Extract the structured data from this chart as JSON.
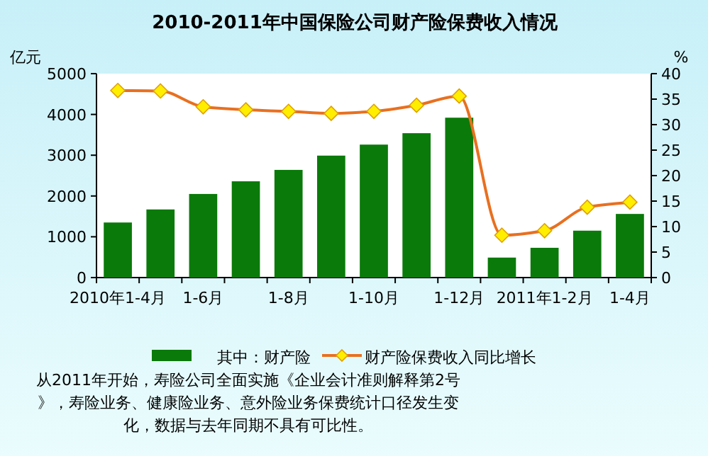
{
  "chart_data": {
    "type": "bar",
    "title": "2010-2011年中国保险公司财产险保费收入情况",
    "ylabel": "亿元",
    "y2label": "%",
    "categories": [
      "2010年1-4月",
      null,
      "1-6月",
      null,
      "1-8月",
      null,
      "1-10月",
      null,
      "1-12月",
      null,
      "2011年1-2月",
      null,
      "1-4月"
    ],
    "series": [
      {
        "name": "其中：财产险",
        "color": "#0a7a0a",
        "values": [
          1350,
          1670,
          2050,
          2360,
          2640,
          2990,
          3260,
          3540,
          3920,
          490,
          730,
          1150,
          1560
        ]
      },
      {
        "name": "财产险保费收入同比增长",
        "type": "line",
        "axis": "y2",
        "color": "#e87020",
        "marker": "diamond",
        "values": [
          36.7,
          36.6,
          33.5,
          32.9,
          32.6,
          32.2,
          32.6,
          33.8,
          35.6,
          8.3,
          9.2,
          13.8,
          14.8
        ]
      }
    ],
    "ylim": [
      0,
      5000
    ],
    "yticks": [
      0,
      1000,
      2000,
      3000,
      4000,
      5000
    ],
    "y2lim": [
      0,
      40
    ],
    "y2ticks": [
      0,
      5,
      10,
      15,
      20,
      25,
      30,
      35,
      40
    ],
    "legend": "bottom",
    "annotations": [
      "从2011年开始，寿险公司全面实施《企业会计准则解释第2号》，寿险业务、健康险业务、意外险业务保费统计口径发生变化，数据与去年同期不具有可比性。"
    ]
  }
}
